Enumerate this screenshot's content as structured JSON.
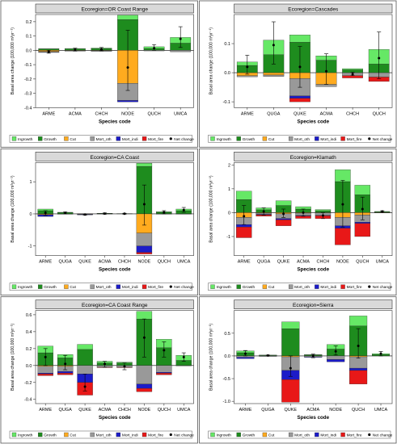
{
  "legend_labels": [
    "Ingrowth",
    "Growth",
    "Cut",
    "Mort_oth",
    "Mort_indi",
    "Mort_fire",
    "Net change"
  ],
  "colors": {
    "Ingrowth": "#66e866",
    "Growth": "#1e8c1e",
    "Cut": "#ffab1f",
    "Mort_oth": "#999999",
    "Mort_indi": "#1c1cc8",
    "Mort_fire": "#e81818",
    "Net change": "#000000",
    "strip": "#d9d9d9"
  },
  "chart_data": [
    {
      "type": "bar",
      "title": "Ecoregion=OR Coast Range",
      "xlabel": "Species code",
      "ylabel": "Basal area change (100,000 m²yr⁻¹)",
      "ylim": [
        -0.4,
        0.25
      ],
      "yticks": [
        -0.4,
        -0.3,
        -0.2,
        -0.1,
        0.0,
        0.1,
        0.2
      ],
      "ytick_labels": [
        "-0.4",
        "-0.3",
        "-0.2",
        "-0.1",
        "0.0",
        "0.1",
        "0.2"
      ],
      "categories": [
        "ARME",
        "ACMA",
        "CHCH",
        "NODE",
        "QUCH",
        "UMCA"
      ],
      "series": [
        {
          "name": "Ingrowth",
          "values": [
            0.003,
            0.004,
            0.004,
            0.03,
            0.012,
            0.04
          ]
        },
        {
          "name": "Growth",
          "values": [
            0.009,
            0.009,
            0.012,
            0.215,
            0.013,
            0.05
          ]
        },
        {
          "name": "Cut",
          "values": [
            -0.008,
            -0.002,
            -0.002,
            -0.23,
            0,
            0
          ]
        },
        {
          "name": "Mort_oth",
          "values": [
            -0.006,
            -0.004,
            -0.006,
            -0.12,
            -0.004,
            -0.01
          ]
        },
        {
          "name": "Mort_indi",
          "values": [
            -0.001,
            0,
            0,
            -0.01,
            0,
            0
          ]
        },
        {
          "name": "Mort_fire",
          "values": [
            0,
            0,
            0,
            0,
            0,
            0
          ]
        }
      ],
      "net": [
        -0.01,
        0.005,
        0.007,
        -0.12,
        0.015,
        0.08
      ],
      "err": [
        [
          -0.02,
          0.0
        ],
        [
          -0.005,
          0.015
        ],
        [
          -0.003,
          0.02
        ],
        [
          -0.28,
          0.14
        ],
        [
          0.0,
          0.04
        ],
        [
          0.02,
          0.165
        ]
      ]
    },
    {
      "type": "bar",
      "title": "Ecoregion=Cascades",
      "xlabel": "Species code",
      "ylabel": "Basal area change (100,000 m²yr⁻¹)",
      "ylim": [
        -0.12,
        0.2
      ],
      "yticks": [
        -0.1,
        0.0,
        0.1
      ],
      "ytick_labels": [
        "-0.1",
        "0.0",
        "0.1"
      ],
      "categories": [
        "ARME",
        "QUGA",
        "QUKE",
        "ACMA",
        "CHCH",
        "QUCH"
      ],
      "series": [
        {
          "name": "Ingrowth",
          "values": [
            0.012,
            0.05,
            0.025,
            0.015,
            0.004,
            0.05
          ]
        },
        {
          "name": "Growth",
          "values": [
            0.025,
            0.062,
            0.105,
            0.043,
            0.01,
            0.03
          ]
        },
        {
          "name": "Cut",
          "values": [
            -0.01,
            -0.008,
            -0.02,
            -0.04,
            0,
            0
          ]
        },
        {
          "name": "Mort_oth",
          "values": [
            -0.004,
            -0.005,
            -0.06,
            -0.008,
            -0.01,
            -0.015
          ]
        },
        {
          "name": "Mort_indi",
          "values": [
            0,
            0,
            -0.008,
            0,
            0,
            0
          ]
        },
        {
          "name": "Mort_fire",
          "values": [
            0,
            0,
            -0.012,
            0,
            -0.008,
            -0.015
          ]
        }
      ],
      "net": [
        0.02,
        0.095,
        0.02,
        0.005,
        -0.005,
        0.05
      ],
      "err": [
        [
          -0.005,
          0.06
        ],
        [
          0.03,
          0.175
        ],
        [
          -0.05,
          0.09
        ],
        [
          -0.04,
          0.065
        ],
        [
          -0.01,
          0.002
        ],
        [
          -0.02,
          0.14
        ]
      ]
    },
    {
      "type": "bar",
      "title": "Ecoregion=CA Coast",
      "xlabel": "Species code",
      "ylabel": "Basal area change (100,000 m²yr⁻¹)",
      "ylim": [
        -1.3,
        1.6
      ],
      "yticks": [
        -1,
        0,
        1
      ],
      "ytick_labels": [
        "-1",
        "0",
        "1"
      ],
      "categories": [
        "ARME",
        "QUGA",
        "QUKE",
        "ACMA",
        "CHCH",
        "NODE",
        "QUCH",
        "UMCA"
      ],
      "series": [
        {
          "name": "Ingrowth",
          "values": [
            0.05,
            0.01,
            0.005,
            0.005,
            0.002,
            0.1,
            0.02,
            0.05
          ]
        },
        {
          "name": "Growth",
          "values": [
            0.1,
            0.04,
            0.0,
            0.015,
            0.008,
            1.48,
            0.05,
            0.1
          ]
        },
        {
          "name": "Cut",
          "values": [
            -0.02,
            0,
            -0.01,
            0,
            0,
            -0.6,
            0,
            0
          ]
        },
        {
          "name": "Mort_oth",
          "values": [
            -0.01,
            -0.005,
            -0.01,
            -0.005,
            0,
            -0.4,
            -0.01,
            -0.01
          ]
        },
        {
          "name": "Mort_indi",
          "values": [
            -0.05,
            -0.005,
            -0.01,
            0,
            0,
            -0.2,
            0,
            0
          ]
        },
        {
          "name": "Mort_fire",
          "values": [
            0,
            0,
            0,
            0,
            0,
            -0.05,
            0,
            0
          ]
        }
      ],
      "net": [
        0.03,
        0.03,
        -0.02,
        0.01,
        0.005,
        0.3,
        0.05,
        0.12
      ],
      "err": [
        [
          -0.05,
          0.1
        ],
        [
          0.0,
          0.06
        ],
        [
          -0.04,
          0.0
        ],
        [
          -0.01,
          0.03
        ],
        [
          -0.01,
          0.02
        ],
        [
          -0.35,
          0.9
        ],
        [
          0.0,
          0.1
        ],
        [
          0.05,
          0.2
        ]
      ]
    },
    {
      "type": "bar",
      "title": "Ecoregion=Klamath",
      "xlabel": "Species code",
      "ylabel": "Basal area change (100,000 m²yr⁻¹)",
      "ylim": [
        -1.8,
        2.1
      ],
      "yticks": [
        -1,
        0,
        1,
        2
      ],
      "ytick_labels": [
        "-1",
        "0",
        "1",
        "2"
      ],
      "categories": [
        "ARME",
        "QUGA",
        "QUKE",
        "ACMA",
        "CHCH",
        "NODE",
        "QUCH",
        "UMCA"
      ],
      "series": [
        {
          "name": "Ingrowth",
          "values": [
            0.35,
            0.08,
            0.2,
            0.1,
            0.05,
            0.5,
            0.4,
            0.02
          ]
        },
        {
          "name": "Growth",
          "values": [
            0.55,
            0.12,
            0.3,
            0.15,
            0.08,
            1.3,
            0.75,
            0.03
          ]
        },
        {
          "name": "Cut",
          "values": [
            -0.2,
            -0.02,
            -0.05,
            -0.02,
            -0.01,
            -0.2,
            -0.1,
            0
          ]
        },
        {
          "name": "Mort_oth",
          "values": [
            -0.3,
            -0.05,
            -0.2,
            -0.1,
            -0.1,
            -0.35,
            -0.3,
            -0.005
          ]
        },
        {
          "name": "Mort_indi",
          "values": [
            -0.1,
            -0.02,
            -0.05,
            -0.02,
            -0.02,
            -0.1,
            -0.05,
            0
          ]
        },
        {
          "name": "Mort_fire",
          "values": [
            -0.45,
            -0.06,
            -0.25,
            -0.1,
            -0.12,
            -0.7,
            -0.55,
            -0.005
          ]
        }
      ],
      "net": [
        -0.15,
        0.05,
        -0.05,
        0.0,
        -0.12,
        0.35,
        0.15,
        0.05
      ],
      "err": [
        [
          -0.5,
          0.3
        ],
        [
          -0.1,
          0.2
        ],
        [
          -0.2,
          0.15
        ],
        [
          -0.15,
          0.15
        ],
        [
          -0.25,
          0.0
        ],
        [
          -0.6,
          1.35
        ],
        [
          -0.3,
          0.65
        ],
        [
          0.02,
          0.08
        ]
      ]
    },
    {
      "type": "bar",
      "title": "Ecoregion=CA Coast Range",
      "xlabel": "Species code",
      "ylabel": "Basal area change (100,000 m²yr⁻¹)",
      "ylim": [
        -0.45,
        0.65
      ],
      "yticks": [
        -0.4,
        -0.2,
        0.0,
        0.2,
        0.4,
        0.6
      ],
      "ytick_labels": [
        "-0.4",
        "-0.2",
        "0.0",
        "0.2",
        "0.4",
        "0.6"
      ],
      "categories": [
        "ARME",
        "QUGA",
        "QUKE",
        "ACMA",
        "CHCH",
        "NODE",
        "QUCH",
        "UMCA"
      ],
      "series": [
        {
          "name": "Ingrowth",
          "values": [
            0.08,
            0.04,
            0.06,
            0.02,
            0.01,
            0.09,
            0.1,
            0.06
          ]
        },
        {
          "name": "Growth",
          "values": [
            0.15,
            0.09,
            0.19,
            0.03,
            0.03,
            0.55,
            0.21,
            0.06
          ]
        },
        {
          "name": "Cut",
          "values": [
            -0.01,
            -0.01,
            0,
            0,
            0,
            0,
            0,
            0
          ]
        },
        {
          "name": "Mort_oth",
          "values": [
            -0.08,
            -0.06,
            -0.1,
            -0.02,
            -0.02,
            -0.22,
            -0.08,
            -0.005
          ]
        },
        {
          "name": "Mort_indi",
          "values": [
            -0.01,
            -0.02,
            -0.1,
            0,
            0,
            -0.05,
            -0.01,
            0
          ]
        },
        {
          "name": "Mort_fire",
          "values": [
            -0.02,
            -0.02,
            -0.15,
            -0.005,
            -0.005,
            -0.04,
            -0.02,
            0
          ]
        }
      ],
      "net": [
        0.1,
        0.02,
        -0.25,
        0.02,
        -0.01,
        0.33,
        0.18,
        0.1
      ],
      "err": [
        [
          0.0,
          0.2
        ],
        [
          -0.05,
          0.12
        ],
        [
          -0.3,
          -0.1
        ],
        [
          -0.02,
          0.05
        ],
        [
          -0.05,
          0.03
        ],
        [
          0.1,
          0.55
        ],
        [
          0.1,
          0.28
        ],
        [
          0.05,
          0.15
        ]
      ]
    },
    {
      "type": "bar",
      "title": "Ecoregion=Sierra",
      "xlabel": "Species code",
      "ylabel": "Basal area change (100,000 m²yr⁻¹)",
      "ylim": [
        -1.05,
        1.0
      ],
      "yticks": [
        -1.0,
        -0.5,
        0.0,
        0.5
      ],
      "ytick_labels": [
        "-1.0",
        "-0.5",
        "0.0",
        "0.5"
      ],
      "categories": [
        "ARME",
        "QUGA",
        "QUKE",
        "ACMA",
        "NODE",
        "QUCH",
        "UMCA"
      ],
      "series": [
        {
          "name": "Ingrowth",
          "values": [
            0.04,
            0.01,
            0.15,
            0.01,
            0.1,
            0.22,
            0.02
          ]
        },
        {
          "name": "Growth",
          "values": [
            0.07,
            0.01,
            0.6,
            0.02,
            0.15,
            0.66,
            0.03
          ]
        },
        {
          "name": "Cut",
          "values": [
            0,
            0,
            -0.02,
            0,
            0,
            -0.02,
            0
          ]
        },
        {
          "name": "Mort_oth",
          "values": [
            -0.03,
            -0.005,
            -0.3,
            -0.02,
            -0.08,
            -0.25,
            0
          ]
        },
        {
          "name": "Mort_indi",
          "values": [
            -0.03,
            -0.005,
            -0.2,
            -0.01,
            -0.05,
            -0.05,
            0
          ]
        },
        {
          "name": "Mort_fire",
          "values": [
            0,
            0,
            -0.5,
            0,
            0,
            -0.3,
            0
          ]
        }
      ],
      "net": [
        0.05,
        0.01,
        -0.27,
        0.0,
        0.1,
        0.22,
        0.05
      ],
      "err": [
        [
          0.0,
          0.12
        ],
        [
          0.0,
          0.02
        ],
        [
          -0.45,
          0.0
        ],
        [
          -0.04,
          0.04
        ],
        [
          0.02,
          0.22
        ],
        [
          -0.05,
          0.6
        ],
        [
          0.0,
          0.1
        ]
      ]
    }
  ]
}
